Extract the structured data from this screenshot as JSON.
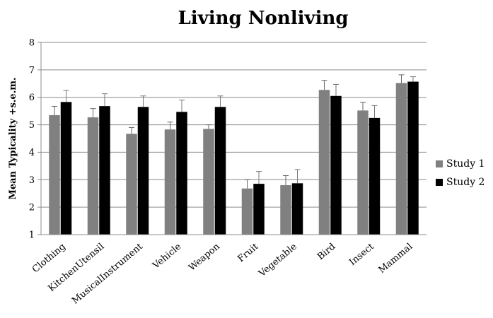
{
  "chart_data": {
    "type": "bar",
    "title": "Living Nonliving",
    "xlabel": "",
    "ylabel": "Mean Typicality +s.e.m.",
    "ylim": [
      1,
      8
    ],
    "yticks": [
      1,
      2,
      3,
      4,
      5,
      6,
      7,
      8
    ],
    "grid": true,
    "legend_position": "right",
    "categories": [
      "Clothing",
      "KitchenUtensil",
      "MusicalInstrument",
      "Vehicle",
      "Weapon",
      "Fruit",
      "Vegetable",
      "Bird",
      "Insect",
      "Mammal"
    ],
    "series": [
      {
        "name": "Study 1",
        "color": "#808080",
        "values": [
          5.35,
          5.27,
          4.67,
          4.83,
          4.85,
          2.68,
          2.8,
          6.27,
          5.52,
          6.52
        ],
        "errors": [
          0.32,
          0.32,
          0.23,
          0.27,
          0.15,
          0.32,
          0.35,
          0.35,
          0.3,
          0.3
        ]
      },
      {
        "name": "Study 2",
        "color": "#000000",
        "values": [
          5.83,
          5.68,
          5.65,
          5.47,
          5.65,
          2.85,
          2.87,
          6.05,
          5.25,
          6.57
        ],
        "errors": [
          0.42,
          0.45,
          0.4,
          0.43,
          0.4,
          0.45,
          0.5,
          0.42,
          0.45,
          0.18
        ]
      }
    ]
  }
}
